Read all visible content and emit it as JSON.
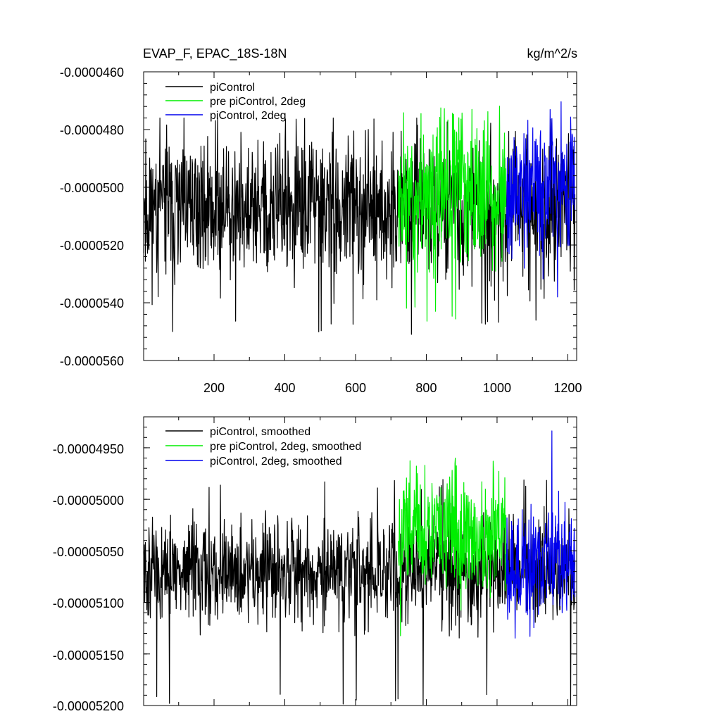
{
  "chart_data": [
    {
      "type": "line",
      "title": "EVAP_F, EPAC_18S-18N",
      "units": "kg/m^2/s",
      "xlim": [
        1,
        1225
      ],
      "ylim": [
        -5.6e-05,
        -4.6e-05
      ],
      "xticks": [
        200,
        400,
        600,
        800,
        1000,
        1200
      ],
      "yticks": [
        -4.6e-05,
        -4.8e-05,
        -5e-05,
        -5.2e-05,
        -5.4e-05,
        -5.6e-05
      ],
      "ytick_labels": [
        "-0.0000460",
        "-0.0000480",
        "-0.0000500",
        "-0.0000520",
        "-0.0000540",
        "-0.0000560"
      ],
      "legend_position": "top-left",
      "series": [
        {
          "name": "piControl",
          "color": "#000000",
          "x_range": [
            1,
            1220
          ],
          "center": -5.075e-05,
          "spread": 1.1e-06,
          "min": -5.51e-05,
          "max": -4.76e-05,
          "seed": 11
        },
        {
          "name": "pre piControl, 2deg",
          "color": "#00ee00",
          "x_range": [
            721,
            1025
          ],
          "center": -5.02e-05,
          "spread": 1.2e-06,
          "min": -5.47e-05,
          "max": -4.69e-05,
          "seed": 23
        },
        {
          "name": "piControl, 2deg",
          "color": "#0000ee",
          "x_range": [
            1026,
            1220
          ],
          "center": -5.02e-05,
          "spread": 1.1e-06,
          "min": -5.39e-05,
          "max": -4.68e-05,
          "seed": 37
        }
      ]
    },
    {
      "type": "line",
      "xlim": [
        1,
        1225
      ],
      "ylim": [
        -5.2e-05,
        -4.92e-05
      ],
      "xticks": [
        200,
        400,
        600,
        800,
        1000,
        1200
      ],
      "yticks": [
        -4.95e-05,
        -5e-05,
        -5.05e-05,
        -5.1e-05,
        -5.15e-05,
        -5.2e-05
      ],
      "ytick_labels": [
        "-0.00004950",
        "-0.00005000",
        "-0.00005050",
        "-0.00005100",
        "-0.00005150",
        "-0.00005200"
      ],
      "legend_position": "top-left",
      "series": [
        {
          "name": "piControl, smoothed",
          "color": "#000000",
          "x_range": [
            1,
            1220
          ],
          "center": -5.07e-05,
          "spread": 2.2e-07,
          "min": -5.2e-05,
          "max": -4.98e-05,
          "seed": 51
        },
        {
          "name": "pre piControl, 2deg, smoothed",
          "color": "#00ee00",
          "x_range": [
            721,
            1025
          ],
          "center": -5.03e-05,
          "spread": 2.5e-07,
          "min": -5.14e-05,
          "max": -4.96e-05,
          "seed": 67
        },
        {
          "name": "piControl, 2deg, smoothed",
          "color": "#0000ee",
          "x_range": [
            1026,
            1220
          ],
          "center": -5.06e-05,
          "spread": 2.5e-07,
          "min": -5.14e-05,
          "max": -4.93e-05,
          "seed": 79
        }
      ]
    }
  ]
}
